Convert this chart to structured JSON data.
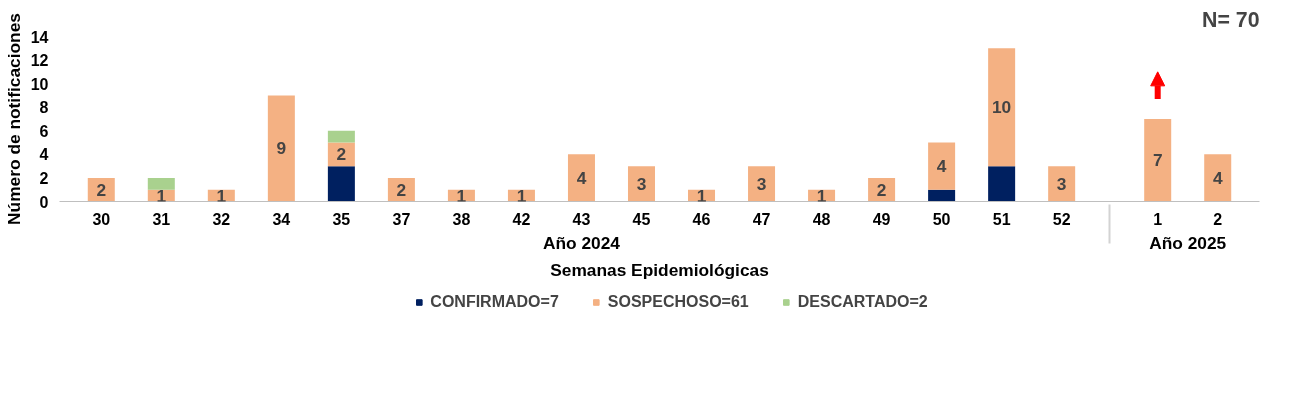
{
  "chart_data": {
    "type": "bar",
    "stacked": true,
    "xlabel": "Semanas Epidemiológicas",
    "ylabel": "Número de notificaciones",
    "categories": [
      "30",
      "31",
      "32",
      "34",
      "35",
      "37",
      "38",
      "42",
      "43",
      "45",
      "46",
      "47",
      "48",
      "49",
      "50",
      "51",
      "52",
      "1",
      "2"
    ],
    "series": [
      {
        "name": "CONFIRMADO=7",
        "color": "#002060",
        "values": [
          null,
          null,
          null,
          null,
          3,
          null,
          null,
          null,
          null,
          null,
          null,
          null,
          null,
          null,
          1,
          3,
          null,
          null,
          null
        ]
      },
      {
        "name": "SOSPECHOSO=61",
        "color": "#f4b183",
        "values": [
          2,
          1,
          1,
          9,
          2,
          2,
          1,
          1,
          4,
          3,
          1,
          3,
          1,
          2,
          4,
          10,
          3,
          7,
          4
        ],
        "value_labels": [
          "2",
          "1",
          "1",
          "9",
          "2",
          "2",
          "1",
          "1",
          "4",
          "3",
          "1",
          "3",
          "1",
          "2",
          "4",
          "10",
          "3",
          "7",
          "4"
        ]
      },
      {
        "name": "DESCARTADO=2",
        "color": "#a9d18e",
        "values": [
          null,
          1,
          null,
          null,
          1,
          null,
          null,
          null,
          null,
          null,
          null,
          null,
          null,
          null,
          null,
          null,
          null,
          null,
          null
        ]
      }
    ],
    "ylim": [
      0,
      14
    ],
    "yticks": [
      0,
      2,
      4,
      6,
      8,
      10,
      12,
      14
    ],
    "grid": false,
    "legend": "bottom",
    "annotations": [
      "Año 2024",
      "Año 2025",
      "N= 70"
    ]
  }
}
